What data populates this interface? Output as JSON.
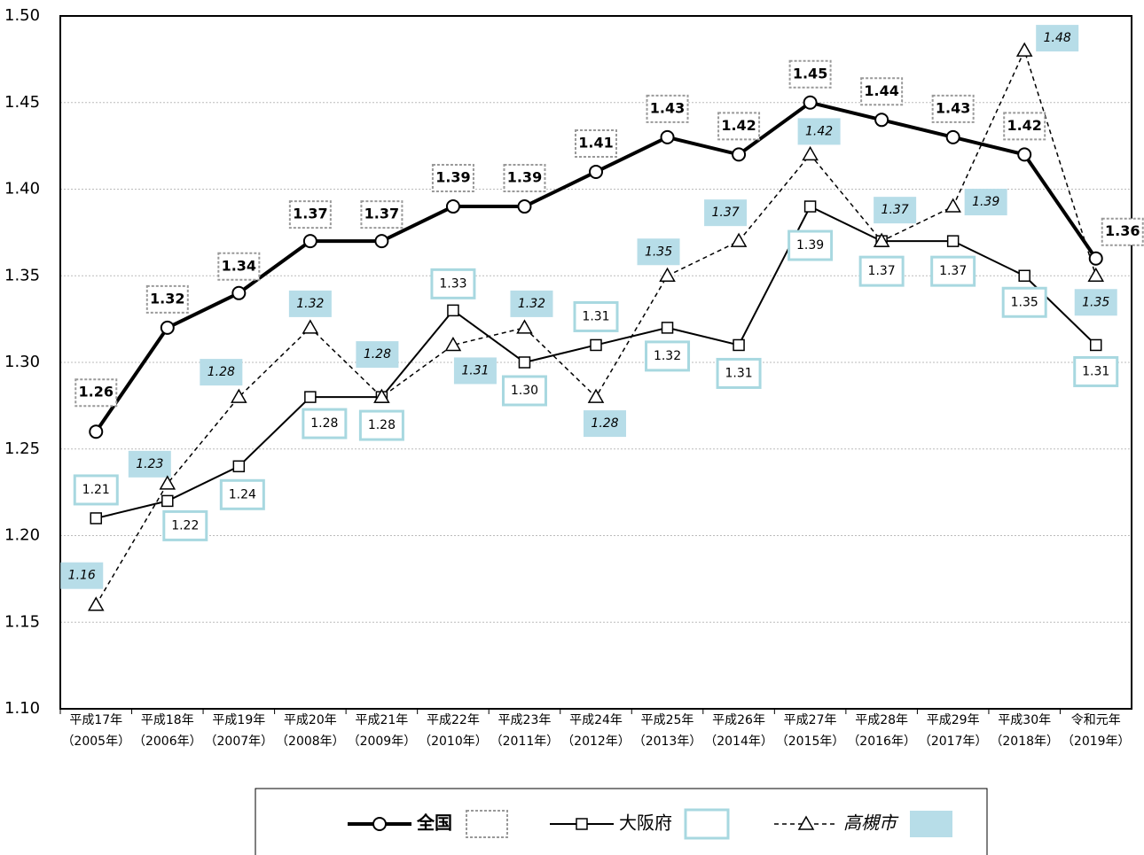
{
  "chart_data": {
    "type": "line",
    "categories": [
      [
        "平成17年",
        "（2005年）"
      ],
      [
        "平成18年",
        "（2006年）"
      ],
      [
        "平成19年",
        "（2007年）"
      ],
      [
        "平成20年",
        "（2008年）"
      ],
      [
        "平成21年",
        "（2009年）"
      ],
      [
        "平成22年",
        "（2010年）"
      ],
      [
        "平成23年",
        "（2011年）"
      ],
      [
        "平成24年",
        "（2012年）"
      ],
      [
        "平成25年",
        "（2013年）"
      ],
      [
        "平成26年",
        "（2014年）"
      ],
      [
        "平成27年",
        "（2015年）"
      ],
      [
        "平成28年",
        "（2016年）"
      ],
      [
        "平成29年",
        "（2017年）"
      ],
      [
        "平成30年",
        "（2018年）"
      ],
      [
        "令和元年",
        "（2019年）"
      ]
    ],
    "series": [
      {
        "name": "全国",
        "color": "#000000",
        "values": [
          1.26,
          1.32,
          1.34,
          1.37,
          1.37,
          1.39,
          1.39,
          1.41,
          1.43,
          1.42,
          1.45,
          1.44,
          1.43,
          1.42,
          1.36
        ],
        "value_labels": [
          "1.26",
          "1.32",
          "1.34",
          "1.37",
          "1.37",
          "1.39",
          "1.39",
          "1.41",
          "1.43",
          "1.42",
          "1.45",
          "1.44",
          "1.43",
          "1.42",
          "1.36"
        ]
      },
      {
        "name": "大阪府",
        "color": "#000000",
        "values": [
          1.21,
          1.22,
          1.24,
          1.28,
          1.28,
          1.33,
          1.3,
          1.31,
          1.32,
          1.31,
          1.39,
          1.37,
          1.37,
          1.35,
          1.31
        ],
        "value_labels": [
          "1.21",
          "1.22",
          "1.24",
          "1.28",
          "1.28",
          "1.33",
          "1.30",
          "1.31",
          "1.32",
          "1.31",
          "1.39",
          "1.37",
          "1.37",
          "1.35",
          "1.31"
        ]
      },
      {
        "name": "高槻市",
        "color": "#000000",
        "values": [
          1.16,
          1.23,
          1.28,
          1.32,
          1.28,
          1.31,
          1.32,
          1.28,
          1.35,
          1.37,
          1.42,
          1.37,
          1.39,
          1.48,
          1.35
        ],
        "value_labels": [
          "1.16",
          "1.23",
          "1.28",
          "1.32",
          "1.28",
          "1.31",
          "1.32",
          "1.28",
          "1.35",
          "1.37",
          "1.42",
          "1.37",
          "1.39",
          "1.48",
          "1.35"
        ]
      }
    ],
    "ylim": [
      1.1,
      1.5
    ],
    "yticks": [
      {
        "value": 1.1,
        "label": "1.10"
      },
      1.15,
      {
        "value": 1.2,
        "label": "1.20"
      },
      1.25,
      {
        "value": 1.3,
        "label": "1.30"
      },
      1.35,
      {
        "value": 1.4,
        "label": "1.40"
      },
      1.45,
      {
        "value": 1.5,
        "label": "1.50"
      }
    ],
    "grid": true
  }
}
